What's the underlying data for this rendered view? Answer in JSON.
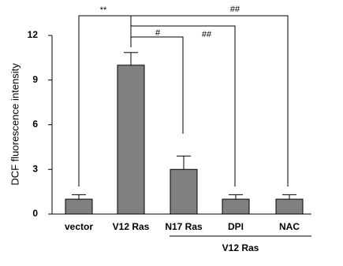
{
  "chart_data": {
    "type": "bar",
    "y_label": "DCF fluorescence intensity",
    "categories": [
      "vector",
      "V12 Ras",
      "N17 Ras",
      "DPI",
      "NAC"
    ],
    "values": [
      1,
      10,
      3,
      1,
      1
    ],
    "errors": [
      0.3,
      0.85,
      0.9,
      0.3,
      0.3
    ],
    "color": "#808080",
    "ylim": [
      0,
      12
    ],
    "yticks": [
      0,
      3,
      6,
      9,
      12
    ],
    "group_label": "V12 Ras",
    "annotations": [
      "**",
      "##",
      "##",
      "#"
    ]
  }
}
